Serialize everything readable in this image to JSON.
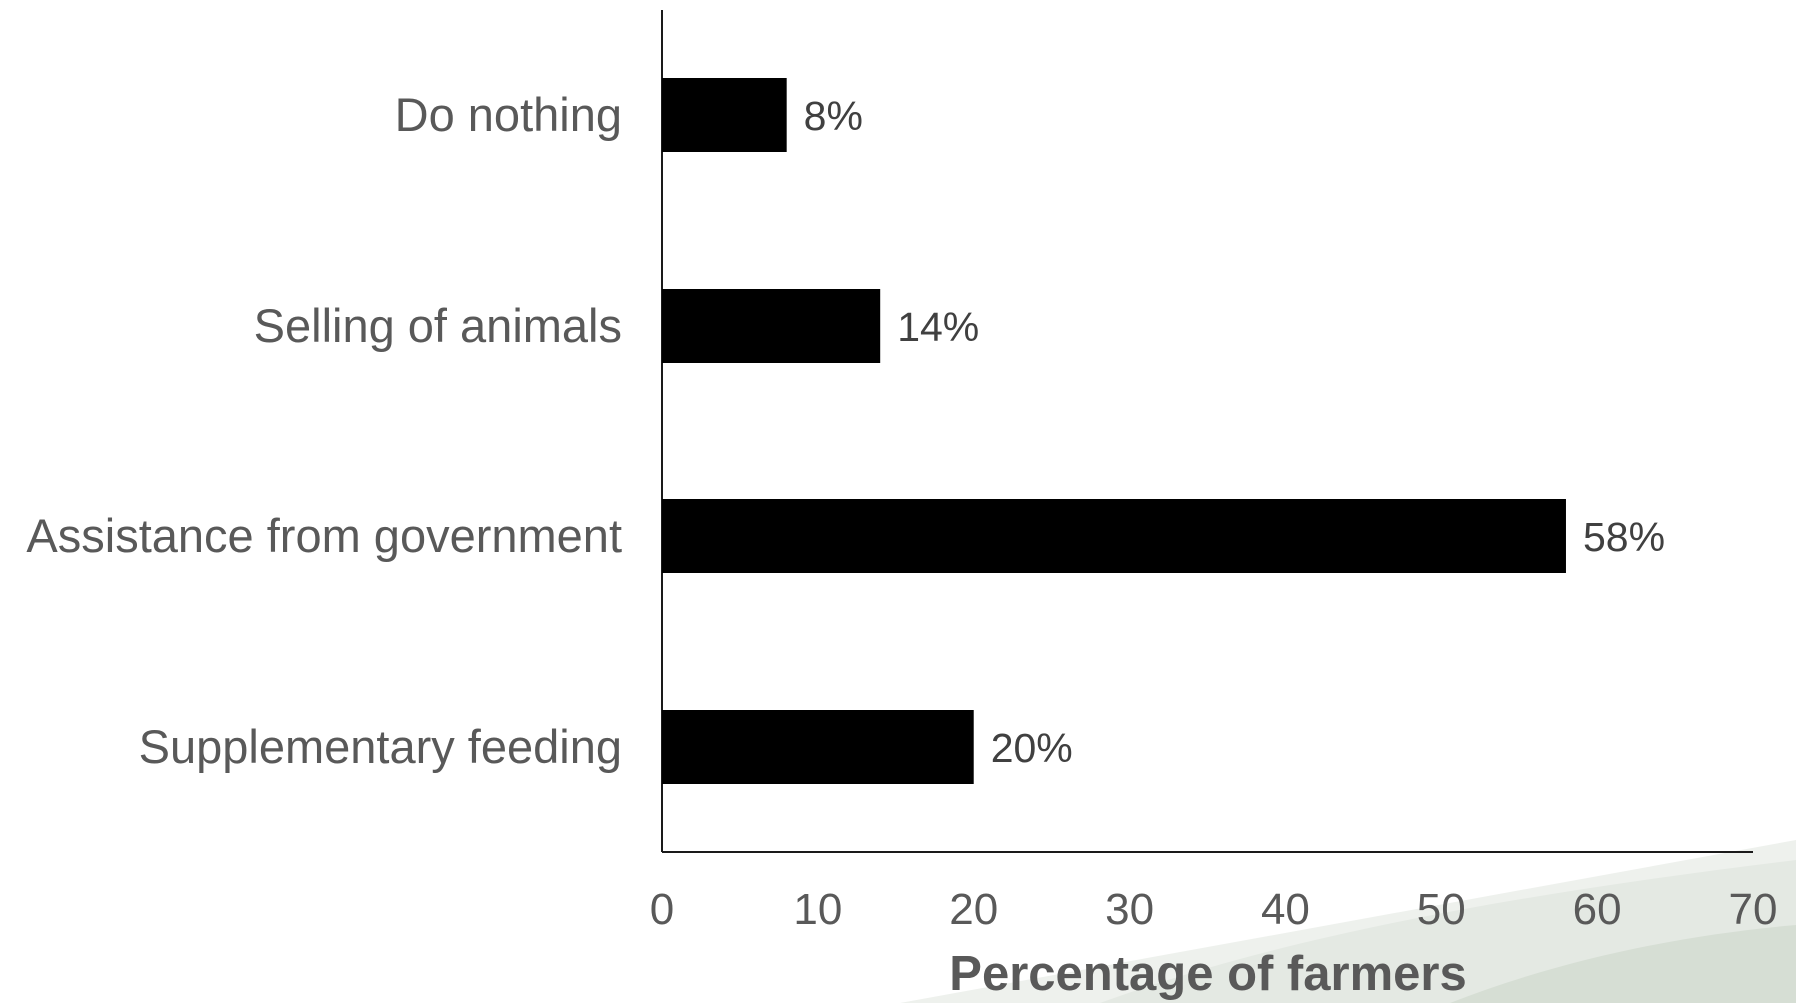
{
  "chart_data": {
    "type": "bar",
    "orientation": "horizontal",
    "categories": [
      "Do nothing",
      "Selling of animals",
      "Assistance from government",
      "Supplementary feeding"
    ],
    "values": [
      8,
      14,
      58,
      20
    ],
    "data_labels": [
      "8%",
      "14%",
      "58%",
      "20%"
    ],
    "title": "",
    "xlabel": "Percentage of farmers",
    "ylabel": "",
    "xlim": [
      0,
      70
    ],
    "x_ticks": [
      0,
      10,
      20,
      30,
      40,
      50,
      60,
      70
    ],
    "grid": false,
    "legend": "none",
    "bar_color": "#000000",
    "text_color": "#595959"
  },
  "background": {
    "description_decoration": "faint landscape watermark at bottom-right",
    "watermark_colors": [
      "#e8ece6",
      "#d9e0d8"
    ]
  }
}
